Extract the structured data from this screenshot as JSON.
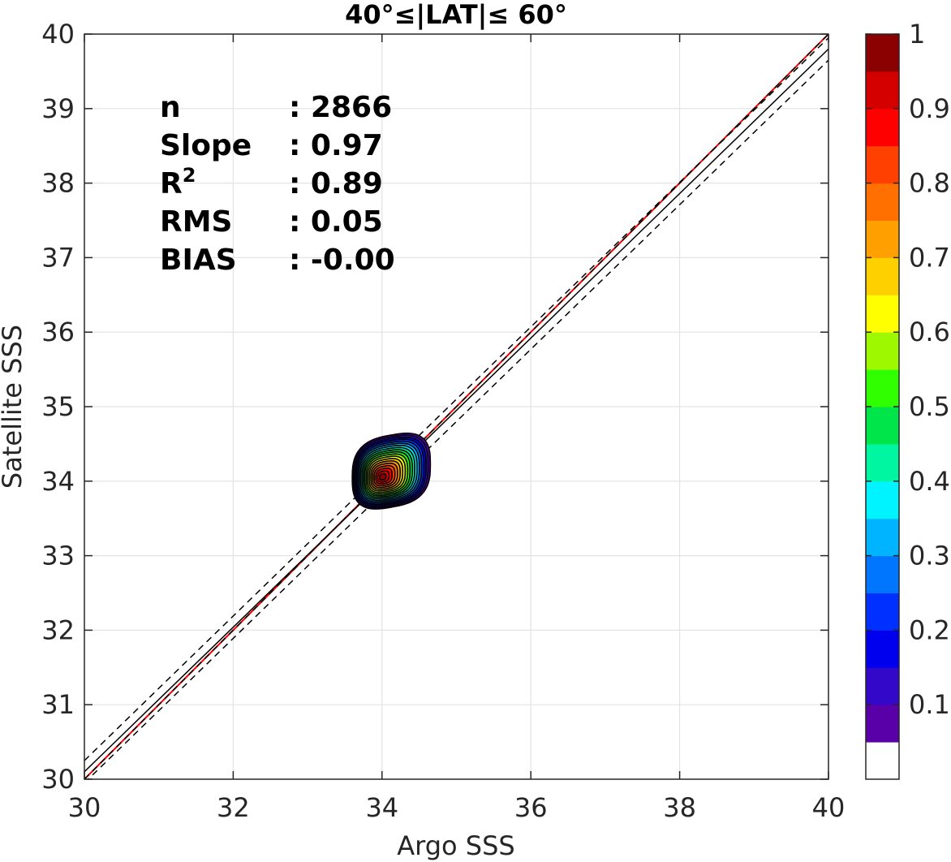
{
  "chart_data": {
    "type": "heatmap",
    "title": "40°≤|LAT|≤ 60°",
    "xlabel": "Argo SSS",
    "ylabel": "Satellite SSS",
    "xlim": [
      30,
      40
    ],
    "ylim": [
      30,
      40
    ],
    "xticks": [
      "30",
      "32",
      "34",
      "36",
      "38",
      "40"
    ],
    "yticks": [
      "30",
      "31",
      "32",
      "33",
      "34",
      "35",
      "36",
      "37",
      "38",
      "39",
      "40"
    ],
    "grid": true,
    "density_peak": {
      "x": 34.0,
      "y": 34.05
    },
    "density_spread": {
      "x": 0.5,
      "y": 0.5
    },
    "density_extent": {
      "x": [
        33.6,
        34.65
      ],
      "y": [
        33.65,
        34.62
      ]
    },
    "lines": [
      {
        "name": "1:1",
        "color": "#ff0000",
        "style": "solid",
        "slope": 1.0,
        "intercept": 0.0
      },
      {
        "name": "fit",
        "color": "#000000",
        "style": "solid",
        "slope": 0.97,
        "intercept": 1.0
      },
      {
        "name": "fit+",
        "color": "#000000",
        "style": "dashed",
        "slope": 0.97,
        "intercept": 1.15
      },
      {
        "name": "fit-",
        "color": "#000000",
        "style": "dashed",
        "slope": 0.97,
        "intercept": 0.85
      },
      {
        "name": "1:1 ref",
        "color": "#000000",
        "style": "dashed",
        "slope": 1.0,
        "intercept": 0.0
      }
    ],
    "stats": [
      {
        "label": "n",
        "value": ": 2866"
      },
      {
        "label": "Slope",
        "value": ": 0.97"
      },
      {
        "label": "R",
        "sup": "2",
        "value": ": 0.89"
      },
      {
        "label": "RMS",
        "value": ": 0.05"
      },
      {
        "label": "BIAS",
        "value": ": -0.00"
      }
    ],
    "colorbar": {
      "ticks": [
        "0.1",
        "0.2",
        "0.3",
        "0.4",
        "0.5",
        "0.6",
        "0.7",
        "0.8",
        "0.9",
        "1"
      ],
      "levels": 20,
      "colors": [
        "#ffffff",
        "#5a00a8",
        "#3308c8",
        "#0000ee",
        "#0030ff",
        "#0076ff",
        "#00b4ff",
        "#00f4ff",
        "#00f6a0",
        "#00e64a",
        "#30ff00",
        "#9ef800",
        "#ffff00",
        "#ffd000",
        "#ffa000",
        "#ff7000",
        "#ff4000",
        "#ff0000",
        "#d40000",
        "#8b0000"
      ]
    }
  }
}
